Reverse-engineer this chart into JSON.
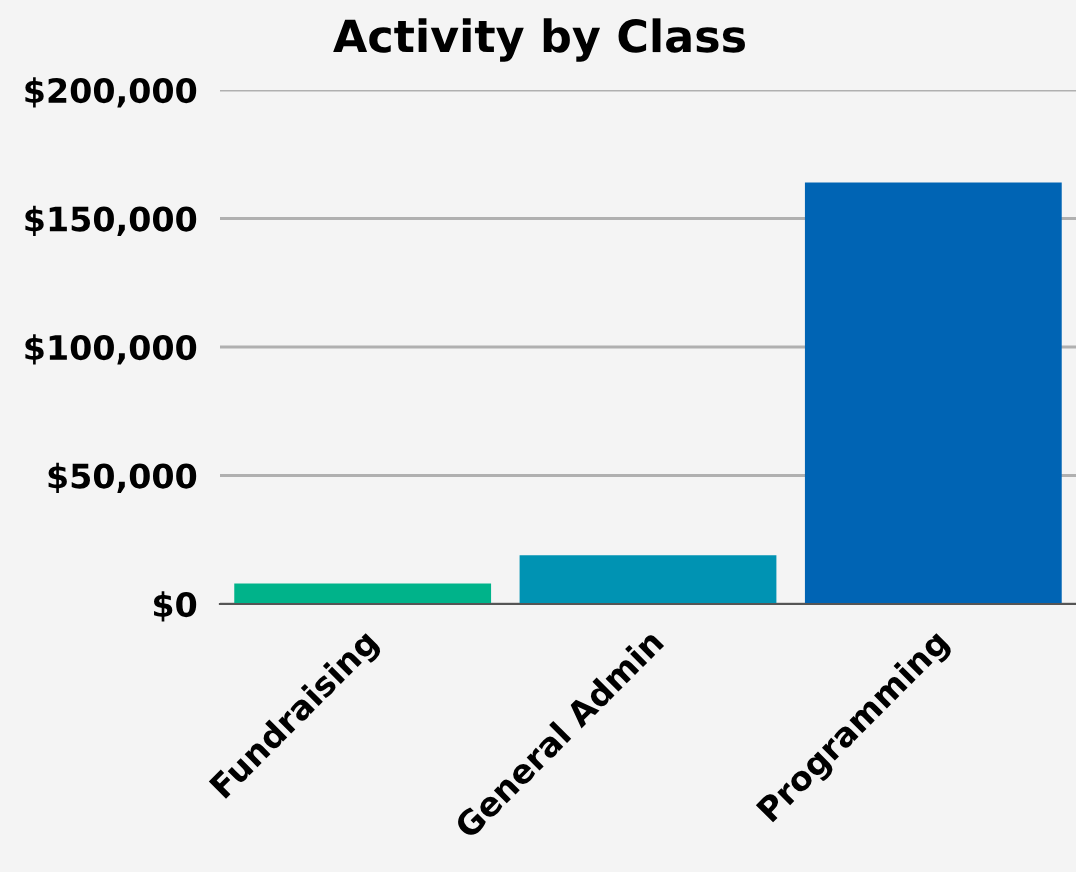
{
  "chart_data": {
    "type": "bar",
    "title": "Activity by Class",
    "categories": [
      "Fundraising",
      "General Admin",
      "Programming"
    ],
    "values": [
      8000,
      19000,
      164000
    ],
    "colors": [
      "#00b38a",
      "#0093b3",
      "#0064b4"
    ],
    "ylim": [
      0,
      200000
    ],
    "yticks": [
      {
        "value": 0,
        "label": "$0"
      },
      {
        "value": 50000,
        "label": "$50,000"
      },
      {
        "value": 100000,
        "label": "$100,000"
      },
      {
        "value": 150000,
        "label": "$150,000"
      },
      {
        "value": 200000,
        "label": "$200,000"
      }
    ],
    "grid": "y"
  }
}
